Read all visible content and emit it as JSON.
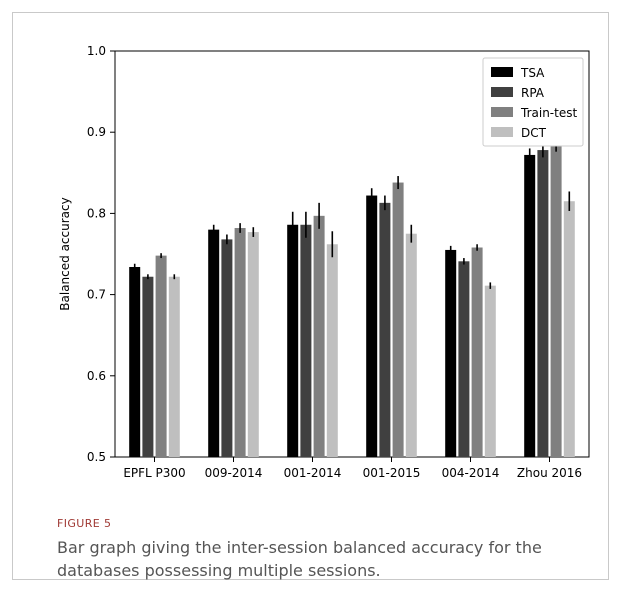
{
  "figure": {
    "label": "FIGURE 5",
    "caption": "Bar graph giving the inter-session balanced accuracy for the databases possessing multiple sessions."
  },
  "colors": {
    "TSA": "#000000",
    "RPA": "#404040",
    "Train-test": "#808080",
    "DCT": "#bfbfbf"
  },
  "chart_data": {
    "type": "bar",
    "title": "",
    "xlabel": "",
    "ylabel": "Balanced accuracy",
    "ylim": [
      0.5,
      1.0
    ],
    "yticks": [
      "0.5",
      "0.6",
      "0.7",
      "0.8",
      "0.9",
      "1.0"
    ],
    "categories": [
      "EPFL P300",
      "009-2014",
      "001-2014",
      "001-2015",
      "004-2014",
      "Zhou 2016"
    ],
    "legend_position": "top-right",
    "grid": false,
    "series": [
      {
        "name": "TSA",
        "values": [
          0.734,
          0.78,
          0.786,
          0.822,
          0.755,
          0.872
        ],
        "errors": [
          0.004,
          0.006,
          0.016,
          0.009,
          0.005,
          0.008
        ]
      },
      {
        "name": "RPA",
        "values": [
          0.722,
          0.768,
          0.786,
          0.813,
          0.741,
          0.878
        ],
        "errors": [
          0.003,
          0.006,
          0.016,
          0.009,
          0.004,
          0.009
        ]
      },
      {
        "name": "Train-test",
        "values": [
          0.748,
          0.782,
          0.797,
          0.838,
          0.758,
          0.885
        ],
        "errors": [
          0.003,
          0.006,
          0.016,
          0.008,
          0.004,
          0.009
        ]
      },
      {
        "name": "DCT",
        "values": [
          0.722,
          0.777,
          0.762,
          0.775,
          0.711,
          0.815
        ],
        "errors": [
          0.003,
          0.006,
          0.016,
          0.011,
          0.004,
          0.012
        ]
      }
    ]
  }
}
